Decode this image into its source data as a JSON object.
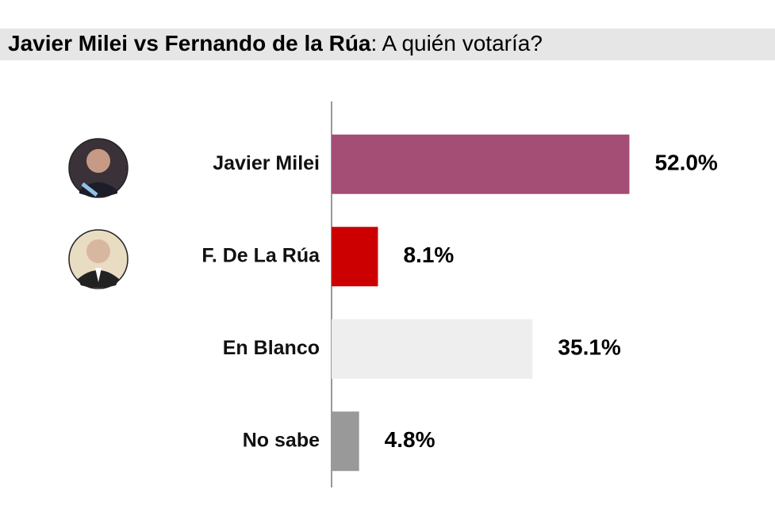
{
  "chart_data": {
    "type": "bar",
    "orientation": "horizontal",
    "title": "Javier Milei vs Fernando de la Rúa",
    "subtitle": ": A quién votaría?",
    "categories": [
      "Javier Milei",
      "F. De La Rúa",
      "En Blanco",
      "No sabe"
    ],
    "values": [
      52.0,
      8.1,
      35.1,
      4.8
    ],
    "value_labels": [
      "52.0%",
      "8.1%",
      "35.1%",
      "4.8%"
    ],
    "colors": [
      "#a44d75",
      "#cc0000",
      "#eeeeee",
      "#999999"
    ]
  }
}
